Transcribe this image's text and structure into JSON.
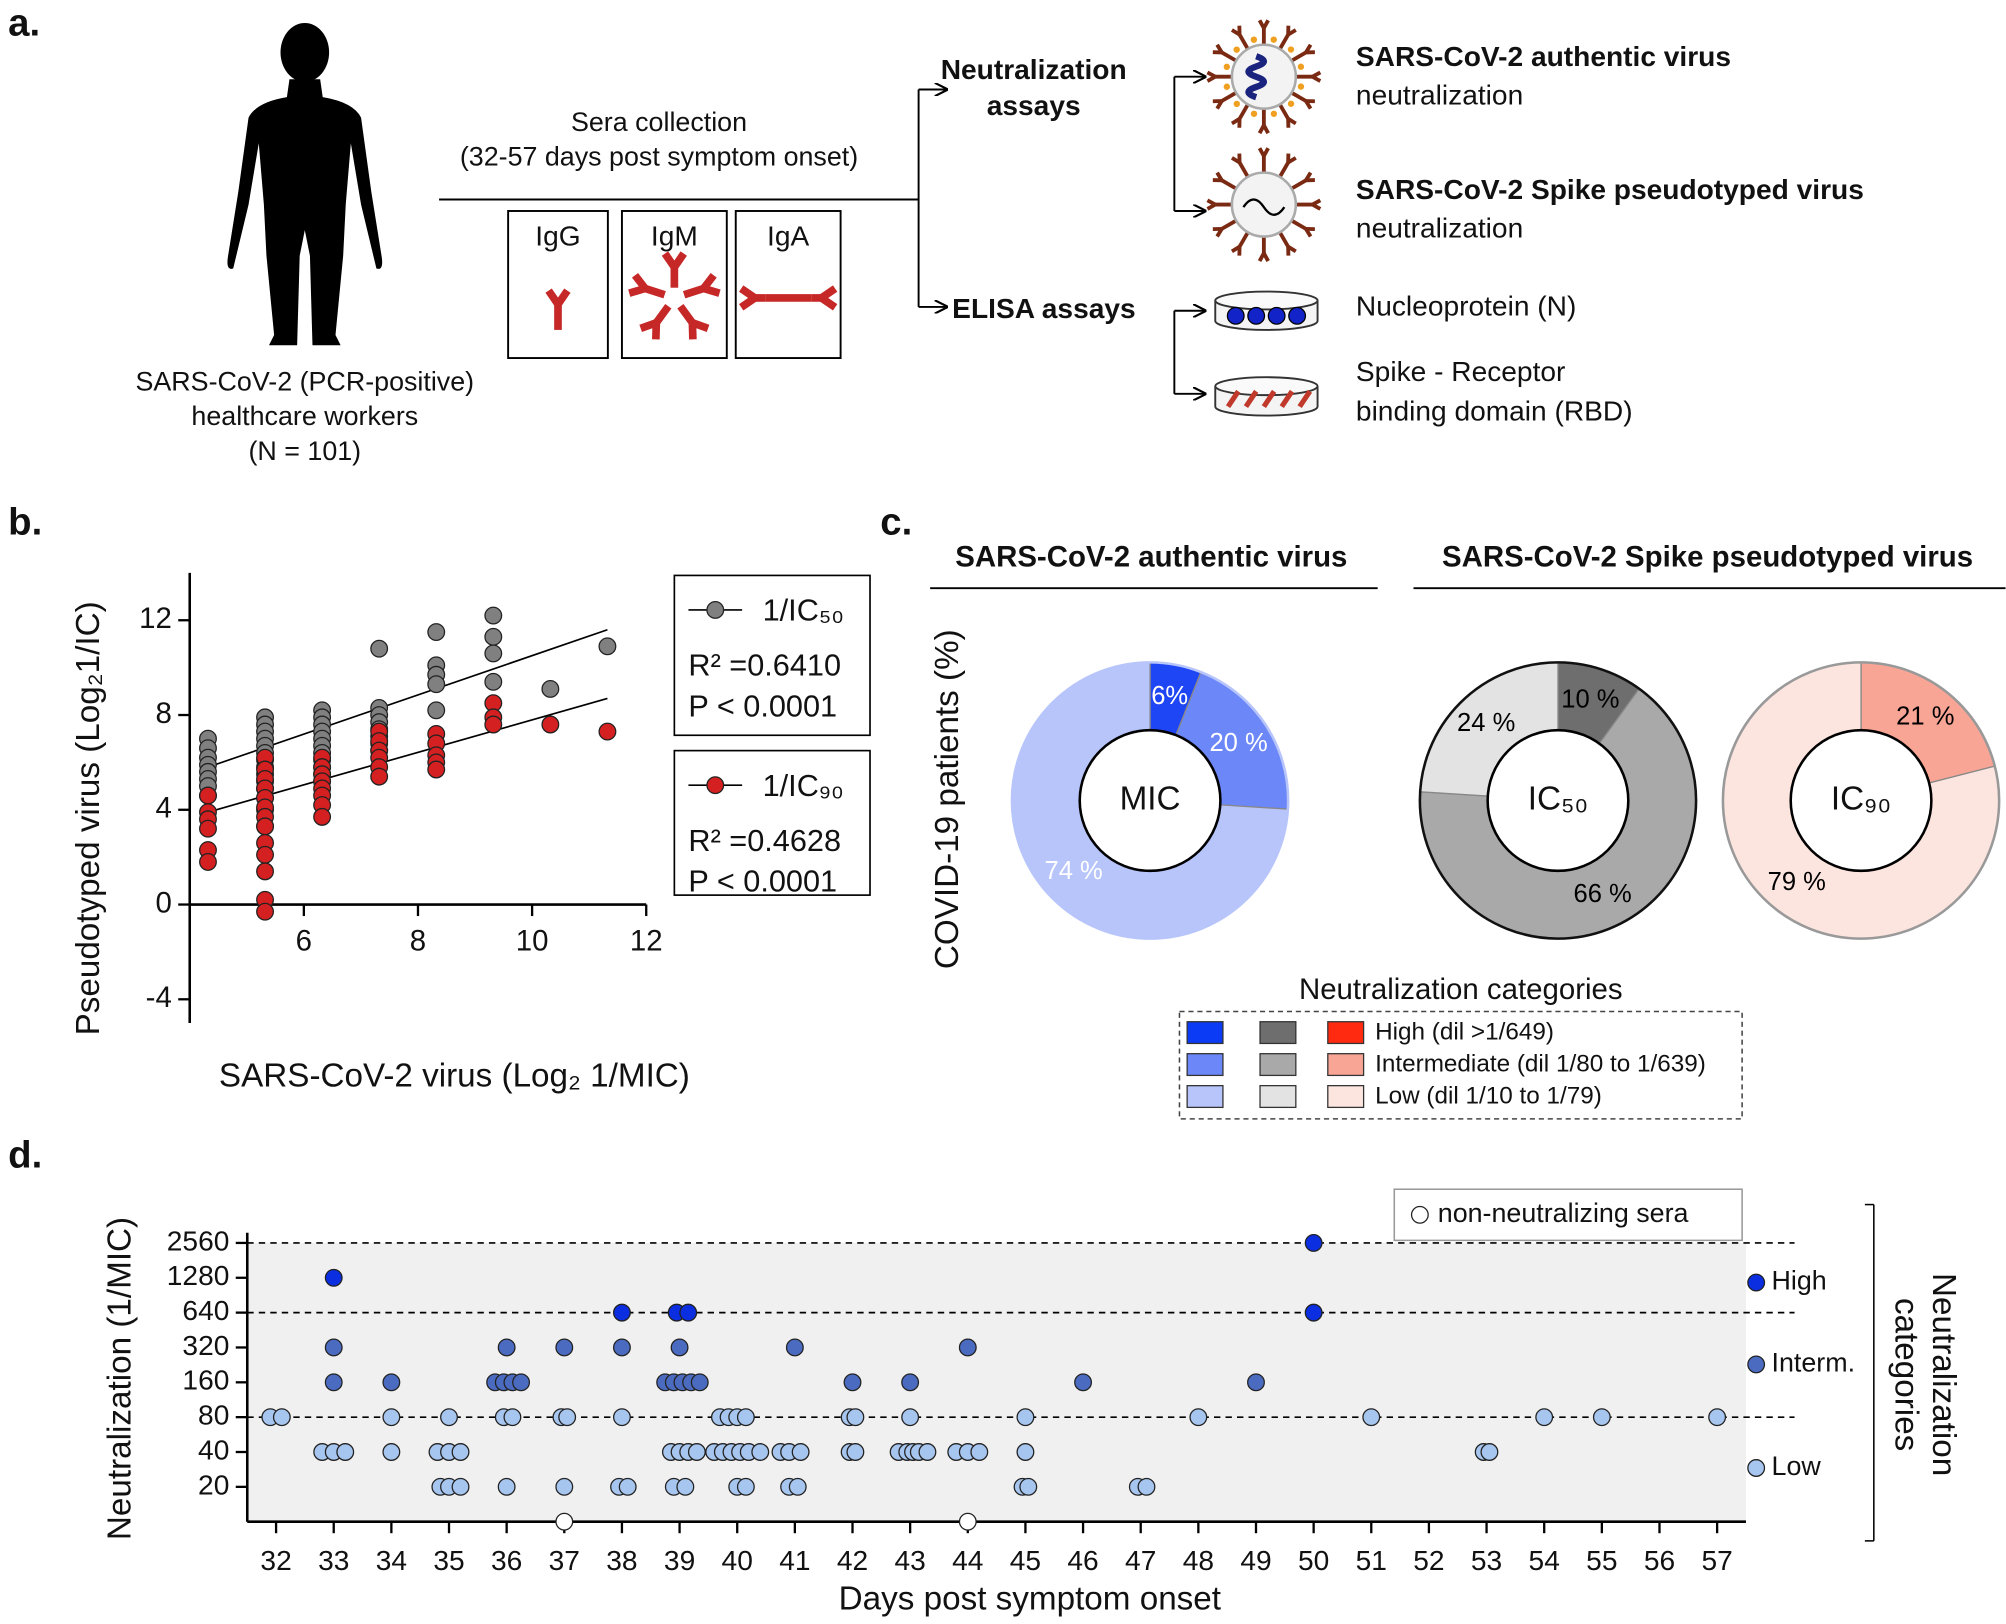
{
  "panel_labels": [
    "a.",
    "b.",
    "c.",
    "d."
  ],
  "panel_a": {
    "participants": [
      "SARS-CoV-2 (PCR-positive)",
      "healthcare workers",
      "(N = 101)"
    ],
    "collection": [
      "Sera collection",
      "(32-57 days post  symptom onset)"
    ],
    "isotypes": [
      "IgG",
      "IgM",
      "IgA"
    ],
    "neutralization": {
      "title": [
        "Neutralization",
        "assays"
      ],
      "items": [
        {
          "title": "SARS-CoV-2 authentic virus",
          "subtitle": "neutralization"
        },
        {
          "title": "SARS-CoV-2 Spike pseudotyped virus",
          "subtitle": "neutralization"
        }
      ]
    },
    "elisa": {
      "title": "ELISA assays",
      "items": [
        [
          "Nucleoprotein (N)"
        ],
        [
          "Spike - Receptor",
          "binding domain (RBD)"
        ]
      ]
    }
  },
  "panel_c": {
    "sections": [
      "SARS-CoV-2 authentic virus",
      "SARS-CoV-2 Spike pseudotyped virus"
    ],
    "ylabel": "COVID-19 patients (%)",
    "legend": {
      "title": "Neutralization categories",
      "entries": [
        {
          "label": "High (dil >1/649)",
          "colors": [
            "#0b3bf5",
            "#6e6e6e",
            "#ff2a0f"
          ]
        },
        {
          "label": "Intermediate (dil 1/80 to 1/639)",
          "colors": [
            "#6c87f7",
            "#a9a9a9",
            "#f8a595"
          ]
        },
        {
          "label": "Low (dil 1/10 to 1/79)",
          "colors": [
            "#b7c5fb",
            "#e3e3e3",
            "#fde5df"
          ]
        }
      ]
    }
  },
  "chart_data": [
    {
      "type": "scatter",
      "xlabel": "SARS-CoV-2 virus (Log₂ 1/MIC)",
      "ylabel": "Pseudotyped virus (Log₂1/IC)",
      "xlim": [
        4,
        12
      ],
      "ylim": [
        -5,
        14
      ],
      "xticks": [
        6,
        8,
        10,
        12
      ],
      "yticks": [
        -4,
        0,
        4,
        8,
        12
      ],
      "series": [
        {
          "name": "1/IC₅₀",
          "color": "#808080",
          "annotations": [
            "R² =0.6410",
            "P < 0.0001"
          ],
          "fit": {
            "x": [
              4.32,
              11.32
            ],
            "y": [
              5.8,
              11.6
            ]
          },
          "x": [
            4.32,
            4.32,
            4.32,
            4.32,
            4.32,
            4.32,
            4.32,
            4.32,
            5.32,
            5.32,
            5.32,
            5.32,
            5.32,
            5.32,
            5.32,
            5.32,
            5.32,
            5.32,
            5.32,
            5.32,
            5.32,
            5.32,
            6.32,
            6.32,
            6.32,
            6.32,
            6.32,
            6.32,
            6.32,
            6.32,
            6.32,
            6.32,
            6.32,
            7.32,
            7.32,
            7.32,
            7.32,
            7.32,
            7.32,
            7.32,
            7.32,
            8.32,
            8.32,
            8.32,
            8.32,
            8.32,
            9.32,
            9.32,
            9.32,
            9.32,
            10.32,
            11.32
          ],
          "values": [
            7.0,
            6.6,
            6.2,
            5.9,
            5.6,
            5.3,
            5.0,
            4.6,
            7.9,
            7.6,
            7.3,
            7.0,
            6.7,
            6.4,
            6.1,
            5.8,
            5.5,
            5.2,
            4.9,
            4.5,
            4.0,
            3.3,
            8.2,
            7.9,
            7.6,
            7.3,
            7.0,
            6.7,
            6.4,
            6.1,
            5.8,
            5.5,
            5.2,
            10.8,
            8.3,
            8.0,
            7.7,
            7.4,
            7.1,
            6.8,
            6.5,
            11.5,
            10.1,
            9.7,
            9.3,
            8.2,
            12.2,
            11.3,
            10.6,
            9.4,
            9.1,
            10.9
          ]
        },
        {
          "name": "1/IC₉₀",
          "color": "#d42020",
          "annotations": [
            "R² =0.4628",
            "P < 0.0001"
          ],
          "fit": {
            "x": [
              4.32,
              11.32
            ],
            "y": [
              3.9,
              8.7
            ]
          },
          "x": [
            4.32,
            4.32,
            4.32,
            4.32,
            4.32,
            4.32,
            5.32,
            5.32,
            5.32,
            5.32,
            5.32,
            5.32,
            5.32,
            5.32,
            5.32,
            5.32,
            5.32,
            5.32,
            5.32,
            6.32,
            6.32,
            6.32,
            6.32,
            6.32,
            6.32,
            6.32,
            6.32,
            7.32,
            7.32,
            7.32,
            7.32,
            7.32,
            7.32,
            8.32,
            8.32,
            8.32,
            8.32,
            8.32,
            9.32,
            9.32,
            9.32,
            10.32,
            11.32
          ],
          "values": [
            4.6,
            3.9,
            3.6,
            3.2,
            2.3,
            1.8,
            6.2,
            5.7,
            5.3,
            4.9,
            4.5,
            4.1,
            3.7,
            3.3,
            2.6,
            2.1,
            1.4,
            0.2,
            -0.3,
            6.2,
            5.8,
            5.5,
            5.2,
            4.9,
            4.6,
            4.2,
            3.7,
            7.3,
            6.9,
            6.5,
            6.2,
            5.8,
            5.4,
            7.2,
            6.8,
            6.3,
            6.0,
            5.7,
            8.5,
            7.9,
            7.6,
            7.6,
            7.3
          ]
        }
      ]
    },
    {
      "type": "pie",
      "center_label": "MIC",
      "values": [
        6,
        20,
        74
      ],
      "value_labels": [
        "6%",
        "20 %",
        "74 %"
      ],
      "colors": [
        "#1f46f5",
        "#6c87f7",
        "#b7c5fb"
      ],
      "label_color": "#ffffff",
      "edgecolor": "#b7c5fb"
    },
    {
      "type": "pie",
      "center_label": "IC₅₀",
      "values": [
        10,
        66,
        24
      ],
      "value_labels": [
        "10 %",
        "66 %",
        "24 %"
      ],
      "colors": [
        "#6e6e6e",
        "#a9a9a9",
        "#e3e3e3"
      ],
      "label_color": "#000000",
      "edgecolor": "#111111"
    },
    {
      "type": "pie",
      "center_label": "IC₉₀",
      "values": [
        21,
        79
      ],
      "value_labels": [
        "21 %",
        "79 %"
      ],
      "colors": [
        "#f8a595",
        "#fde5df"
      ],
      "label_color": "#000000",
      "edgecolor": "#999999"
    },
    {
      "type": "scatter",
      "xlabel": "Days post symptom onset",
      "ylabel": "Neutralization (1/MIC)",
      "log_scale_y": true,
      "xlim": [
        31.5,
        57.5
      ],
      "xticks": [
        32,
        33,
        34,
        35,
        36,
        37,
        38,
        39,
        40,
        41,
        42,
        43,
        44,
        45,
        46,
        47,
        48,
        49,
        50,
        51,
        52,
        53,
        54,
        55,
        56,
        57
      ],
      "ylim": [
        10,
        2560
      ],
      "yticks": [
        20,
        40,
        80,
        160,
        320,
        640,
        1280,
        2560
      ],
      "reference_lines": [
        80,
        640,
        2560
      ],
      "legend_title": [
        "Neutralization",
        "categories"
      ],
      "series": [
        {
          "name": "High",
          "color": "#0a2ee0",
          "x": [
            33,
            38,
            38.95,
            39.15,
            50,
            50
          ],
          "values": [
            1280,
            640,
            640,
            640,
            2560,
            640
          ]
        },
        {
          "name": "Interm.",
          "color": "#4a6bc0",
          "x": [
            33,
            33,
            34,
            36,
            35.8,
            35.95,
            36.1,
            36.25,
            37,
            38,
            39,
            38.75,
            38.9,
            39.05,
            39.2,
            39.35,
            41,
            42,
            43,
            44,
            46,
            49
          ],
          "values": [
            320,
            160,
            160,
            320,
            160,
            160,
            160,
            160,
            320,
            320,
            320,
            160,
            160,
            160,
            160,
            160,
            320,
            160,
            160,
            320,
            160,
            160
          ]
        },
        {
          "name": "Low",
          "color": "#a7c6ef",
          "x": [
            31.9,
            32.1,
            32.8,
            33,
            33.2,
            34,
            34,
            35,
            34.8,
            35,
            35.2,
            34.85,
            35,
            35.2,
            35.95,
            36.1,
            36,
            36.95,
            37.05,
            37,
            38,
            37.95,
            38.1,
            38.85,
            39,
            39.15,
            39.3,
            38.9,
            39.1,
            39.7,
            39.85,
            40,
            40.15,
            39.6,
            39.75,
            39.9,
            40.05,
            40.2,
            40.4,
            40,
            40.15,
            40.75,
            40.9,
            41.1,
            40.9,
            41.05,
            41.95,
            42.05,
            41.95,
            42.05,
            43,
            42.8,
            42.95,
            43.05,
            43.15,
            43.3,
            43.8,
            44,
            44.2,
            45,
            45,
            44.95,
            45.05,
            46.95,
            47.1,
            48,
            51,
            52.95,
            53.05,
            54,
            55,
            57
          ],
          "values": [
            80,
            80,
            40,
            40,
            40,
            80,
            40,
            80,
            40,
            40,
            40,
            20,
            20,
            20,
            80,
            80,
            20,
            80,
            80,
            20,
            80,
            20,
            20,
            40,
            40,
            40,
            40,
            20,
            20,
            80,
            80,
            80,
            80,
            40,
            40,
            40,
            40,
            40,
            40,
            20,
            20,
            40,
            40,
            40,
            20,
            20,
            80,
            80,
            40,
            40,
            80,
            40,
            40,
            40,
            40,
            40,
            40,
            40,
            40,
            80,
            40,
            20,
            20,
            20,
            20,
            80,
            80,
            40,
            40,
            80,
            80,
            80
          ]
        },
        {
          "name": "non-neutralizing sera",
          "color": "#ffffff",
          "x": [
            37,
            44
          ],
          "values": [
            10,
            10
          ]
        }
      ]
    }
  ]
}
